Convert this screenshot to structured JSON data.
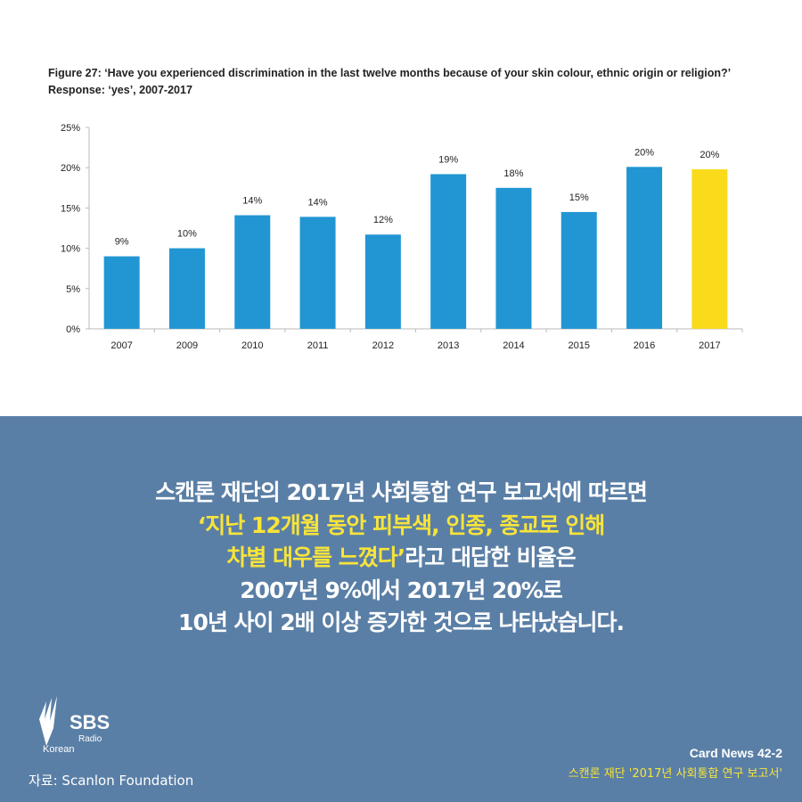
{
  "chart_data": {
    "type": "bar",
    "title": "Figure 27: ‘Have you experienced discrimination in the last twelve months because of your skin colour, ethnic origin or religion?’ Response: ‘yes’, 2007-2017",
    "categories": [
      "2007",
      "2009",
      "2010",
      "2011",
      "2012",
      "2013",
      "2014",
      "2015",
      "2016",
      "2017"
    ],
    "values": [
      9.0,
      10.0,
      14.1,
      13.9,
      11.7,
      19.2,
      17.5,
      14.5,
      20.1,
      19.8
    ],
    "data_labels": [
      "9%",
      "10%",
      "14%",
      "14%",
      "12%",
      "19%",
      "18%",
      "15%",
      "20%",
      "20%"
    ],
    "yticks": [
      "0%",
      "5%",
      "10%",
      "15%",
      "20%",
      "25%"
    ],
    "ylim": [
      0,
      25
    ],
    "grid": false,
    "colors": {
      "default": "#2196d3",
      "highlight": "#f9db1c"
    },
    "highlight_category": "2017"
  },
  "message": {
    "line1": "스캔론 재단의 2017년 사회통합 연구 보고서에 따르면",
    "line2": "‘지난 12개월 동안 피부색, 인종, 종교로 인해",
    "line3_hl": "차별 대우를 느꼈다’",
    "line3_rest": "라고 대답한 비율은",
    "line4": "2007년 9%에서 2017년 20%로",
    "line5": "10년 사이 2배 이상 증가한 것으로 나타났습니다."
  },
  "logo": {
    "text": "SBS",
    "sub": "Radio",
    "lang": "Korean"
  },
  "source": "자료: Scanlon Foundation",
  "card": "Card News 42-2",
  "card_subtitle": "스캔론 재단 '2017년 사회통합 연구 보고서'"
}
